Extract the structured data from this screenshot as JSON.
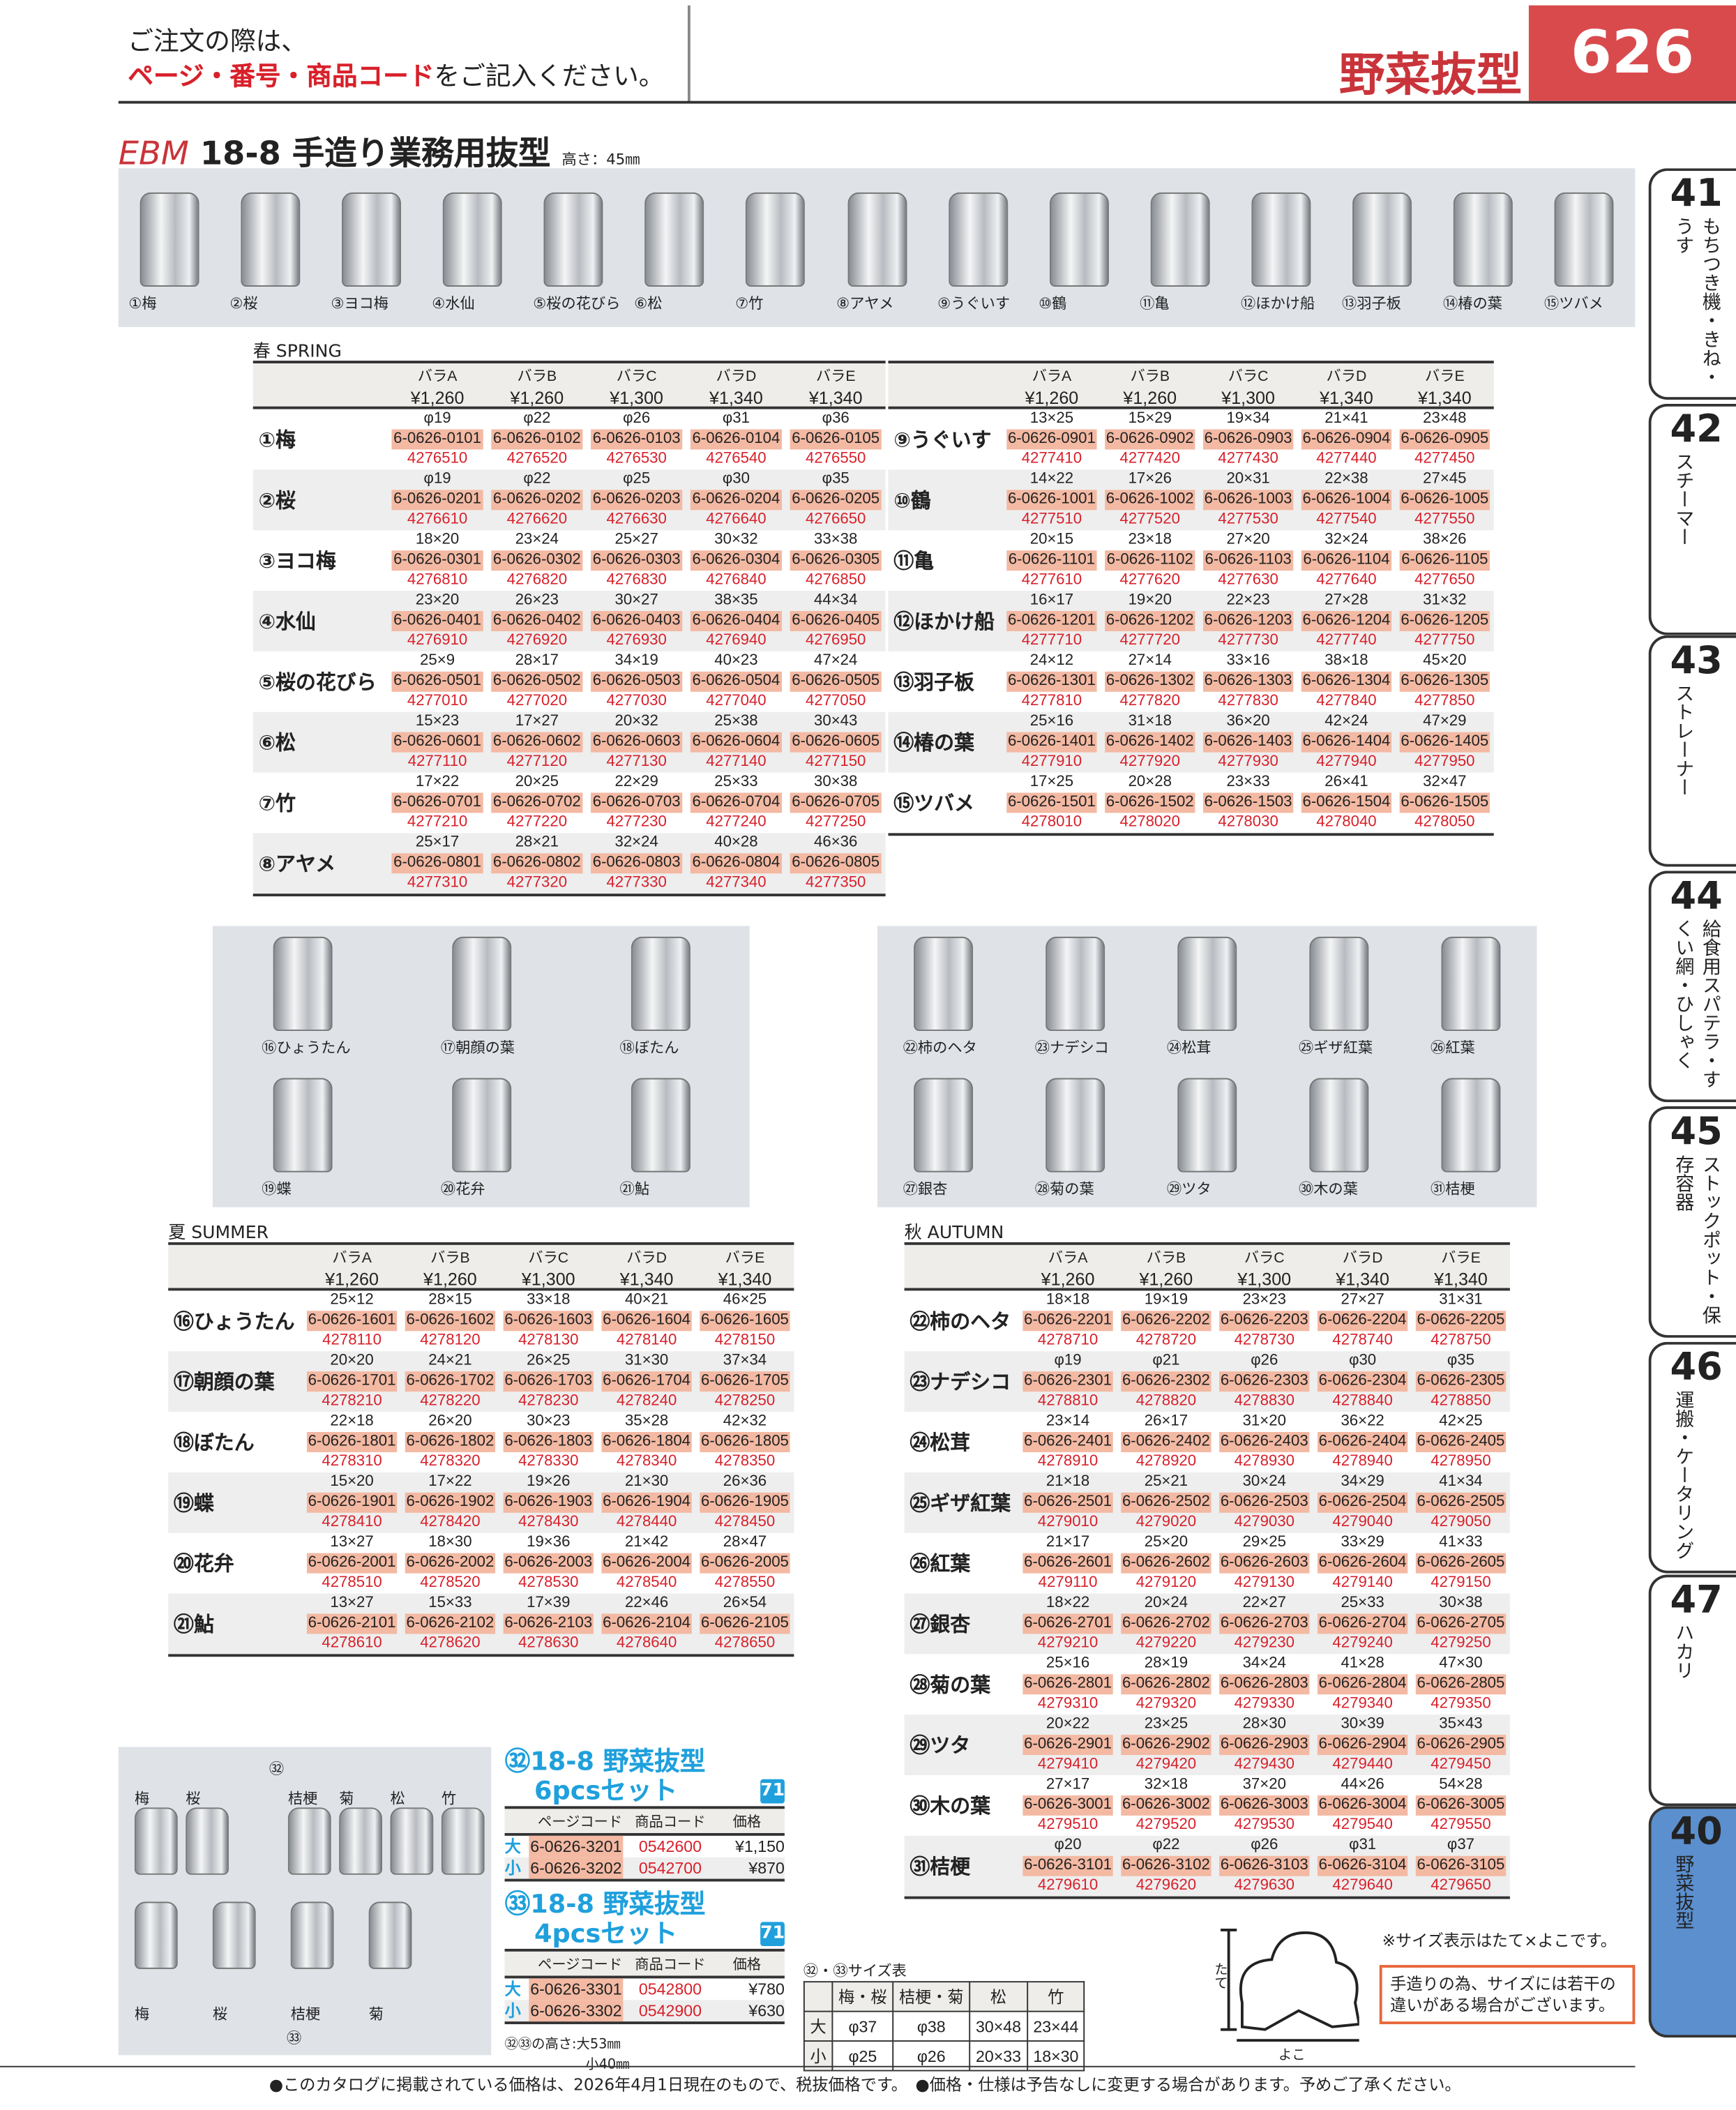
{
  "header": {
    "note_line1": "ご注文の際は、",
    "note_red": "ページ・番号・商品コード",
    "note_rest": "をご記入ください。",
    "category": "野菜抜型",
    "page_number": "626"
  },
  "title": {
    "brand": "EBM",
    "name": "18-8 手造り業務用抜型",
    "height": "高さ：45㎜"
  },
  "top_photo_labels": [
    "①梅",
    "②桜",
    "③ヨコ梅",
    "④水仙",
    "⑤桜の花びら",
    "⑥松",
    "⑦竹",
    "⑧アヤメ",
    "⑨うぐいす",
    "⑩鶴",
    "⑪亀",
    "⑫ほかけ船",
    "⑬羽子板",
    "⑭椿の葉",
    "⑮ツバメ"
  ],
  "summer_photo_labels": [
    "⑯ひょうたん",
    "⑰朝顔の葉",
    "⑱ぼたん",
    "⑲蝶",
    "⑳花弁",
    "㉑鮎"
  ],
  "autumn_photo_labels": [
    "㉒柿のヘタ",
    "㉓ナデシコ",
    "㉔松茸",
    "㉕ギザ紅葉",
    "㉖紅葉",
    "㉗銀杏",
    "㉘菊の葉",
    "㉙ツタ",
    "㉚木の葉",
    "㉛桔梗"
  ],
  "columns": [
    {
      "label": "バラA",
      "price": "¥1,260"
    },
    {
      "label": "バラB",
      "price": "¥1,260"
    },
    {
      "label": "バラC",
      "price": "¥1,300"
    },
    {
      "label": "バラD",
      "price": "¥1,340"
    },
    {
      "label": "バラE",
      "price": "¥1,340"
    }
  ],
  "colors": {
    "accent_red": "#d8202a",
    "code_bg": "#f3b9a3",
    "set_blue": "#1fa0dc",
    "active_tab": "#5b8fce"
  },
  "spring": {
    "label": "春 SPRING",
    "left": [
      {
        "name": "①梅",
        "sizes": [
          "φ19",
          "φ22",
          "φ26",
          "φ31",
          "φ36"
        ],
        "codes": [
          "6-0626-0101",
          "6-0626-0102",
          "6-0626-0103",
          "6-0626-0104",
          "6-0626-0105"
        ],
        "items": [
          "4276510",
          "4276520",
          "4276530",
          "4276540",
          "4276550"
        ]
      },
      {
        "name": "②桜",
        "sizes": [
          "φ19",
          "φ22",
          "φ25",
          "φ30",
          "φ35"
        ],
        "codes": [
          "6-0626-0201",
          "6-0626-0202",
          "6-0626-0203",
          "6-0626-0204",
          "6-0626-0205"
        ],
        "items": [
          "4276610",
          "4276620",
          "4276630",
          "4276640",
          "4276650"
        ]
      },
      {
        "name": "③ヨコ梅",
        "sizes": [
          "18×20",
          "23×24",
          "25×27",
          "30×32",
          "33×38"
        ],
        "codes": [
          "6-0626-0301",
          "6-0626-0302",
          "6-0626-0303",
          "6-0626-0304",
          "6-0626-0305"
        ],
        "items": [
          "4276810",
          "4276820",
          "4276830",
          "4276840",
          "4276850"
        ]
      },
      {
        "name": "④水仙",
        "sizes": [
          "23×20",
          "26×23",
          "30×27",
          "38×35",
          "44×34"
        ],
        "codes": [
          "6-0626-0401",
          "6-0626-0402",
          "6-0626-0403",
          "6-0626-0404",
          "6-0626-0405"
        ],
        "items": [
          "4276910",
          "4276920",
          "4276930",
          "4276940",
          "4276950"
        ]
      },
      {
        "name": "⑤桜の花びら",
        "sizes": [
          "25×9",
          "28×17",
          "34×19",
          "40×23",
          "47×24"
        ],
        "codes": [
          "6-0626-0501",
          "6-0626-0502",
          "6-0626-0503",
          "6-0626-0504",
          "6-0626-0505"
        ],
        "items": [
          "4277010",
          "4277020",
          "4277030",
          "4277040",
          "4277050"
        ]
      },
      {
        "name": "⑥松",
        "sizes": [
          "15×23",
          "17×27",
          "20×32",
          "25×38",
          "30×43"
        ],
        "codes": [
          "6-0626-0601",
          "6-0626-0602",
          "6-0626-0603",
          "6-0626-0604",
          "6-0626-0605"
        ],
        "items": [
          "4277110",
          "4277120",
          "4277130",
          "4277140",
          "4277150"
        ]
      },
      {
        "name": "⑦竹",
        "sizes": [
          "17×22",
          "20×25",
          "22×29",
          "25×33",
          "30×38"
        ],
        "codes": [
          "6-0626-0701",
          "6-0626-0702",
          "6-0626-0703",
          "6-0626-0704",
          "6-0626-0705"
        ],
        "items": [
          "4277210",
          "4277220",
          "4277230",
          "4277240",
          "4277250"
        ]
      },
      {
        "name": "⑧アヤメ",
        "sizes": [
          "25×17",
          "28×21",
          "32×24",
          "40×28",
          "46×36"
        ],
        "codes": [
          "6-0626-0801",
          "6-0626-0802",
          "6-0626-0803",
          "6-0626-0804",
          "6-0626-0805"
        ],
        "items": [
          "4277310",
          "4277320",
          "4277330",
          "4277340",
          "4277350"
        ]
      }
    ],
    "right": [
      {
        "name": "⑨うぐいす",
        "sizes": [
          "13×25",
          "15×29",
          "19×34",
          "21×41",
          "23×48"
        ],
        "codes": [
          "6-0626-0901",
          "6-0626-0902",
          "6-0626-0903",
          "6-0626-0904",
          "6-0626-0905"
        ],
        "items": [
          "4277410",
          "4277420",
          "4277430",
          "4277440",
          "4277450"
        ]
      },
      {
        "name": "⑩鶴",
        "sizes": [
          "14×22",
          "17×26",
          "20×31",
          "22×38",
          "27×45"
        ],
        "codes": [
          "6-0626-1001",
          "6-0626-1002",
          "6-0626-1003",
          "6-0626-1004",
          "6-0626-1005"
        ],
        "items": [
          "4277510",
          "4277520",
          "4277530",
          "4277540",
          "4277550"
        ]
      },
      {
        "name": "⑪亀",
        "sizes": [
          "20×15",
          "23×18",
          "27×20",
          "32×24",
          "38×26"
        ],
        "codes": [
          "6-0626-1101",
          "6-0626-1102",
          "6-0626-1103",
          "6-0626-1104",
          "6-0626-1105"
        ],
        "items": [
          "4277610",
          "4277620",
          "4277630",
          "4277640",
          "4277650"
        ]
      },
      {
        "name": "⑫ほかけ船",
        "sizes": [
          "16×17",
          "19×20",
          "22×23",
          "27×28",
          "31×32"
        ],
        "codes": [
          "6-0626-1201",
          "6-0626-1202",
          "6-0626-1203",
          "6-0626-1204",
          "6-0626-1205"
        ],
        "items": [
          "4277710",
          "4277720",
          "4277730",
          "4277740",
          "4277750"
        ]
      },
      {
        "name": "⑬羽子板",
        "sizes": [
          "24×12",
          "27×14",
          "33×16",
          "38×18",
          "45×20"
        ],
        "codes": [
          "6-0626-1301",
          "6-0626-1302",
          "6-0626-1303",
          "6-0626-1304",
          "6-0626-1305"
        ],
        "items": [
          "4277810",
          "4277820",
          "4277830",
          "4277840",
          "4277850"
        ]
      },
      {
        "name": "⑭椿の葉",
        "sizes": [
          "25×16",
          "31×18",
          "36×20",
          "42×24",
          "47×29"
        ],
        "codes": [
          "6-0626-1401",
          "6-0626-1402",
          "6-0626-1403",
          "6-0626-1404",
          "6-0626-1405"
        ],
        "items": [
          "4277910",
          "4277920",
          "4277930",
          "4277940",
          "4277950"
        ]
      },
      {
        "name": "⑮ツバメ",
        "sizes": [
          "17×25",
          "20×28",
          "23×33",
          "26×41",
          "32×47"
        ],
        "codes": [
          "6-0626-1501",
          "6-0626-1502",
          "6-0626-1503",
          "6-0626-1504",
          "6-0626-1505"
        ],
        "items": [
          "4278010",
          "4278020",
          "4278030",
          "4278040",
          "4278050"
        ]
      }
    ]
  },
  "summer": {
    "label": "夏 SUMMER",
    "rows": [
      {
        "name": "⑯ひょうたん",
        "sizes": [
          "25×12",
          "28×15",
          "33×18",
          "40×21",
          "46×25"
        ],
        "codes": [
          "6-0626-1601",
          "6-0626-1602",
          "6-0626-1603",
          "6-0626-1604",
          "6-0626-1605"
        ],
        "items": [
          "4278110",
          "4278120",
          "4278130",
          "4278140",
          "4278150"
        ]
      },
      {
        "name": "⑰朝顔の葉",
        "sizes": [
          "20×20",
          "24×21",
          "26×25",
          "31×30",
          "37×34"
        ],
        "codes": [
          "6-0626-1701",
          "6-0626-1702",
          "6-0626-1703",
          "6-0626-1704",
          "6-0626-1705"
        ],
        "items": [
          "4278210",
          "4278220",
          "4278230",
          "4278240",
          "4278250"
        ]
      },
      {
        "name": "⑱ぼたん",
        "sizes": [
          "22×18",
          "26×20",
          "30×23",
          "35×28",
          "42×32"
        ],
        "codes": [
          "6-0626-1801",
          "6-0626-1802",
          "6-0626-1803",
          "6-0626-1804",
          "6-0626-1805"
        ],
        "items": [
          "4278310",
          "4278320",
          "4278330",
          "4278340",
          "4278350"
        ]
      },
      {
        "name": "⑲蝶",
        "sizes": [
          "15×20",
          "17×22",
          "19×26",
          "21×30",
          "26×36"
        ],
        "codes": [
          "6-0626-1901",
          "6-0626-1902",
          "6-0626-1903",
          "6-0626-1904",
          "6-0626-1905"
        ],
        "items": [
          "4278410",
          "4278420",
          "4278430",
          "4278440",
          "4278450"
        ]
      },
      {
        "name": "⑳花弁",
        "sizes": [
          "13×27",
          "18×30",
          "19×36",
          "21×42",
          "28×47"
        ],
        "codes": [
          "6-0626-2001",
          "6-0626-2002",
          "6-0626-2003",
          "6-0626-2004",
          "6-0626-2005"
        ],
        "items": [
          "4278510",
          "4278520",
          "4278530",
          "4278540",
          "4278550"
        ]
      },
      {
        "name": "㉑鮎",
        "sizes": [
          "13×27",
          "15×33",
          "17×39",
          "22×46",
          "26×54"
        ],
        "codes": [
          "6-0626-2101",
          "6-0626-2102",
          "6-0626-2103",
          "6-0626-2104",
          "6-0626-2105"
        ],
        "items": [
          "4278610",
          "4278620",
          "4278630",
          "4278640",
          "4278650"
        ]
      }
    ]
  },
  "autumn": {
    "label": "秋 AUTUMN",
    "rows": [
      {
        "name": "㉒柿のヘタ",
        "sizes": [
          "18×18",
          "19×19",
          "23×23",
          "27×27",
          "31×31"
        ],
        "codes": [
          "6-0626-2201",
          "6-0626-2202",
          "6-0626-2203",
          "6-0626-2204",
          "6-0626-2205"
        ],
        "items": [
          "4278710",
          "4278720",
          "4278730",
          "4278740",
          "4278750"
        ]
      },
      {
        "name": "㉓ナデシコ",
        "sizes": [
          "φ19",
          "φ21",
          "φ26",
          "φ30",
          "φ35"
        ],
        "codes": [
          "6-0626-2301",
          "6-0626-2302",
          "6-0626-2303",
          "6-0626-2304",
          "6-0626-2305"
        ],
        "items": [
          "4278810",
          "4278820",
          "4278830",
          "4278840",
          "4278850"
        ]
      },
      {
        "name": "㉔松茸",
        "sizes": [
          "23×14",
          "26×17",
          "31×20",
          "36×22",
          "42×25"
        ],
        "codes": [
          "6-0626-2401",
          "6-0626-2402",
          "6-0626-2403",
          "6-0626-2404",
          "6-0626-2405"
        ],
        "items": [
          "4278910",
          "4278920",
          "4278930",
          "4278940",
          "4278950"
        ]
      },
      {
        "name": "㉕ギザ紅葉",
        "sizes": [
          "21×18",
          "25×21",
          "30×24",
          "34×29",
          "41×34"
        ],
        "codes": [
          "6-0626-2501",
          "6-0626-2502",
          "6-0626-2503",
          "6-0626-2504",
          "6-0626-2505"
        ],
        "items": [
          "4279010",
          "4279020",
          "4279030",
          "4279040",
          "4279050"
        ]
      },
      {
        "name": "㉖紅葉",
        "sizes": [
          "21×17",
          "25×20",
          "29×25",
          "33×29",
          "41×33"
        ],
        "codes": [
          "6-0626-2601",
          "6-0626-2602",
          "6-0626-2603",
          "6-0626-2604",
          "6-0626-2605"
        ],
        "items": [
          "4279110",
          "4279120",
          "4279130",
          "4279140",
          "4279150"
        ]
      },
      {
        "name": "㉗銀杏",
        "sizes": [
          "18×22",
          "20×24",
          "22×27",
          "25×33",
          "30×38"
        ],
        "codes": [
          "6-0626-2701",
          "6-0626-2702",
          "6-0626-2703",
          "6-0626-2704",
          "6-0626-2705"
        ],
        "items": [
          "4279210",
          "4279220",
          "4279230",
          "4279240",
          "4279250"
        ]
      },
      {
        "name": "㉘菊の葉",
        "sizes": [
          "25×16",
          "28×19",
          "34×24",
          "41×28",
          "47×30"
        ],
        "codes": [
          "6-0626-2801",
          "6-0626-2802",
          "6-0626-2803",
          "6-0626-2804",
          "6-0626-2805"
        ],
        "items": [
          "4279310",
          "4279320",
          "4279330",
          "4279340",
          "4279350"
        ]
      },
      {
        "name": "㉙ツタ",
        "sizes": [
          "20×22",
          "23×25",
          "28×30",
          "30×39",
          "35×43"
        ],
        "codes": [
          "6-0626-2901",
          "6-0626-2902",
          "6-0626-2903",
          "6-0626-2904",
          "6-0626-2905"
        ],
        "items": [
          "4279410",
          "4279420",
          "4279430",
          "4279440",
          "4279450"
        ]
      },
      {
        "name": "㉚木の葉",
        "sizes": [
          "27×17",
          "32×18",
          "37×20",
          "44×26",
          "54×28"
        ],
        "codes": [
          "6-0626-3001",
          "6-0626-3002",
          "6-0626-3003",
          "6-0626-3004",
          "6-0626-3005"
        ],
        "items": [
          "4279510",
          "4279520",
          "4279530",
          "4279540",
          "4279550"
        ]
      },
      {
        "name": "㉛桔梗",
        "sizes": [
          "φ20",
          "φ22",
          "φ26",
          "φ31",
          "φ37"
        ],
        "codes": [
          "6-0626-3101",
          "6-0626-3102",
          "6-0626-3103",
          "6-0626-3104",
          "6-0626-3105"
        ],
        "items": [
          "4279610",
          "4279620",
          "4279630",
          "4279640",
          "4279650"
        ]
      }
    ]
  },
  "set_photo_labels": [
    "梅",
    "桜",
    "㉜",
    "桔梗",
    "菊",
    "松",
    "竹",
    "梅",
    "桜",
    "桔梗",
    "菊",
    "㉝"
  ],
  "sets": [
    {
      "title1": "㉜18-8 野菜抜型",
      "title2": "6pcsセット",
      "badge": "71",
      "headers": [
        "ページコード",
        "商品コード",
        "価格"
      ],
      "rows": [
        {
          "size": "大",
          "code": "6-0626-3201",
          "item": "0542600",
          "price": "¥1,150"
        },
        {
          "size": "小",
          "code": "6-0626-3202",
          "item": "0542700",
          "price": "¥870"
        }
      ]
    },
    {
      "title1": "㉝18-8 野菜抜型",
      "title2": "4pcsセット",
      "badge": "71",
      "headers": [
        "ページコード",
        "商品コード",
        "価格"
      ],
      "rows": [
        {
          "size": "大",
          "code": "6-0626-3301",
          "item": "0542800",
          "price": "¥780"
        },
        {
          "size": "小",
          "code": "6-0626-3302",
          "item": "0542900",
          "price": "¥630"
        }
      ]
    }
  ],
  "set_height_note1": "㉜㉝の高さ:大53㎜",
  "set_height_note2": "小40㎜",
  "size_table": {
    "title": "㉜・㉝サイズ表",
    "headers": [
      "",
      "梅・桜",
      "桔梗・菊",
      "松",
      "竹"
    ],
    "rows": [
      [
        "大",
        "φ37",
        "φ38",
        "30×48",
        "23×44"
      ],
      [
        "小",
        "φ25",
        "φ26",
        "20×33",
        "18×30"
      ]
    ]
  },
  "diagram": {
    "height_label": "たて",
    "width_label": "よこ"
  },
  "notes": {
    "size_note": "※サイズ表示はたて×よこです。",
    "handmade_note": "手造りの為、サイズには若干の違いがある場合がございます。"
  },
  "footer": "●このカタログに掲載されている価格は、2026年4月1日現在のもので、税抜価格です。　●価格・仕様は予告なしに変更する場合があります。予めご了承ください。",
  "side_tabs": [
    {
      "num": "41",
      "label": "もちつき機・きね・うす"
    },
    {
      "num": "42",
      "label": "スチーマー"
    },
    {
      "num": "43",
      "label": "ストレーナー"
    },
    {
      "num": "44",
      "label": "給食用スパテラ・すくい網・ひしゃく"
    },
    {
      "num": "45",
      "label": "ストックポット・保存容器"
    },
    {
      "num": "46",
      "label": "運搬・ケータリング"
    },
    {
      "num": "47",
      "label": "ハカリ"
    },
    {
      "num": "40",
      "label": "野菜抜型",
      "active": true
    }
  ]
}
